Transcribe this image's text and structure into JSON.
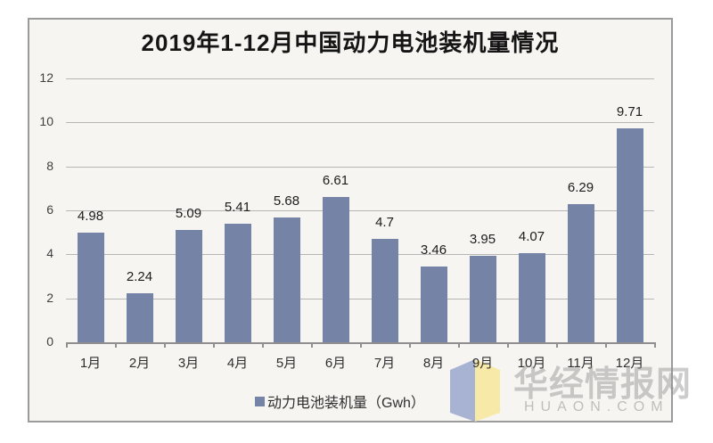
{
  "frame": {
    "border_color": "#9b9b9b",
    "background": "#f6f5f2"
  },
  "chart_data": {
    "type": "bar",
    "title": "2019年1-12月中国动力电池装机量情况",
    "categories": [
      "1月",
      "2月",
      "3月",
      "4月",
      "5月",
      "6月",
      "7月",
      "8月",
      "9月",
      "10月",
      "11月",
      "12月"
    ],
    "values": [
      4.98,
      2.24,
      5.09,
      5.41,
      5.68,
      6.61,
      4.7,
      3.46,
      3.95,
      4.07,
      6.29,
      9.71
    ],
    "value_labels": [
      "4.98",
      "2.24",
      "5.09",
      "5.41",
      "5.68",
      "6.61",
      "4.7",
      "3.46",
      "3.95",
      "4.07",
      "6.29",
      "9.71"
    ],
    "xlabel": "",
    "ylabel": "",
    "ylim": [
      0,
      12
    ],
    "yticks": [
      0,
      2,
      4,
      6,
      8,
      10,
      12
    ],
    "grid": true,
    "legend_position": "bottom",
    "bar_color": "#7583a6"
  },
  "legend": {
    "label": "动力电池装机量（Gwh）",
    "marker_color": "#7583a6"
  },
  "watermark": {
    "cn_text": "华经情报网",
    "en_text": "HUAON.COM",
    "logo_left_color": "#a2aed2",
    "logo_right_color": "#f8e9a1"
  }
}
